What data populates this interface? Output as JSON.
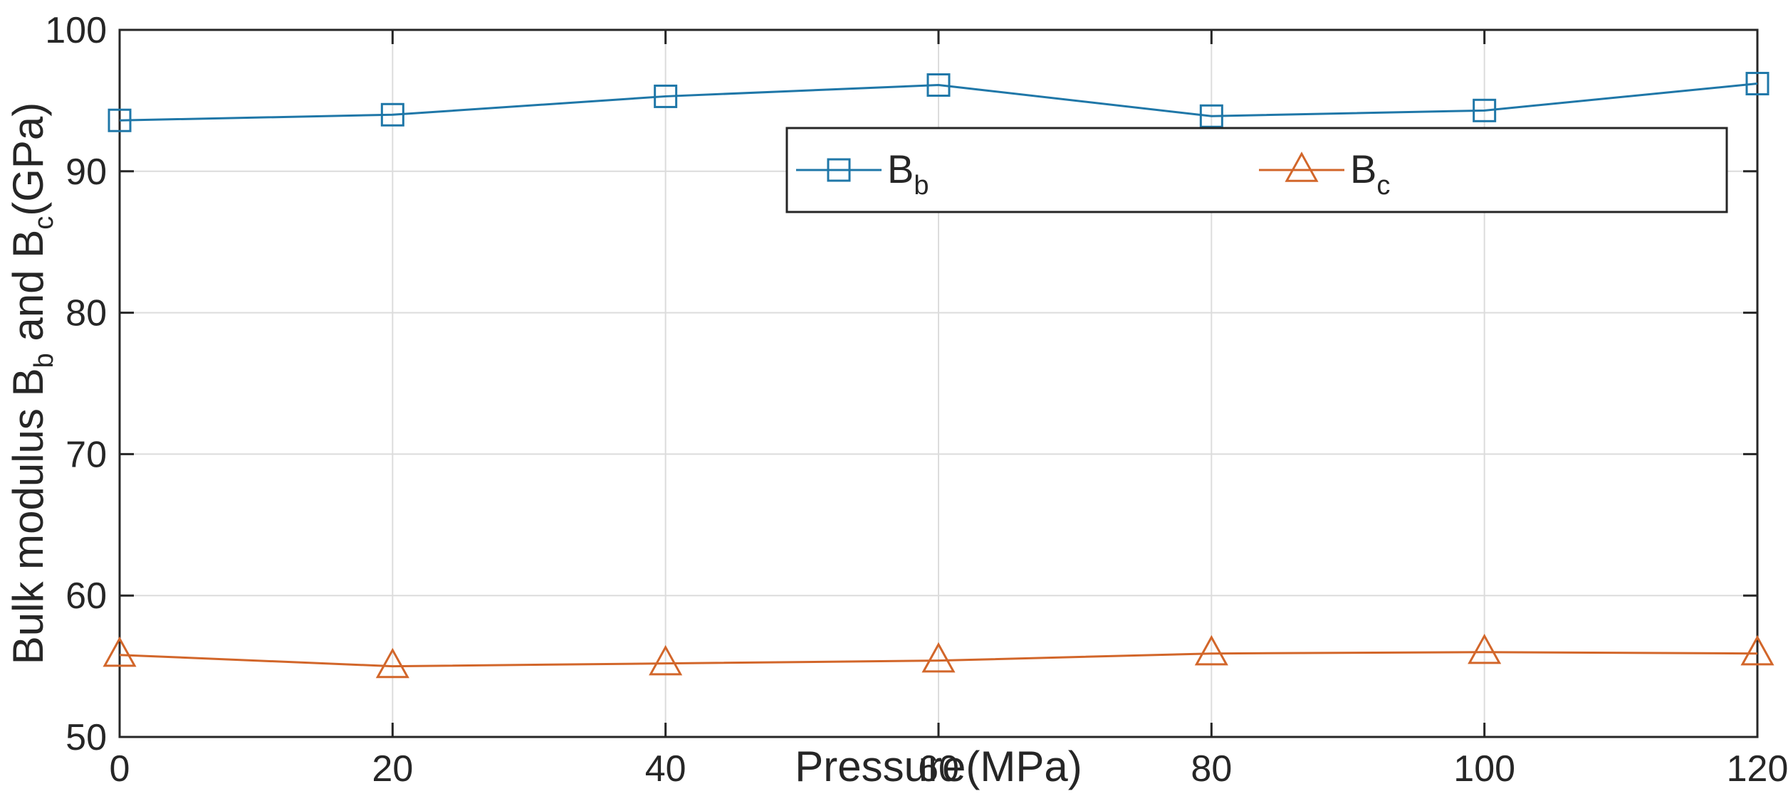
{
  "chart_data": {
    "type": "line",
    "x": [
      0,
      20,
      40,
      60,
      80,
      100,
      120
    ],
    "series": [
      {
        "name": "B_b",
        "label": "B",
        "subscript": "b",
        "marker": "square",
        "color": "#1f77a8",
        "values": [
          93.6,
          94.0,
          95.3,
          96.1,
          93.9,
          94.3,
          96.2
        ]
      },
      {
        "name": "B_c",
        "label": "B",
        "subscript": "c",
        "marker": "triangle",
        "color": "#d2662a",
        "values": [
          55.8,
          55.0,
          55.2,
          55.4,
          55.9,
          56.0,
          55.9
        ]
      }
    ],
    "xlabel": "Pressure(MPa)",
    "ylabel": {
      "part1": "Bulk modulus B",
      "sub1": "b",
      "part2": " and B",
      "sub2": "c",
      "part3": "(GPa)"
    },
    "xlim": [
      0,
      120
    ],
    "ylim": [
      50,
      100
    ],
    "xticks": [
      0,
      20,
      40,
      60,
      80,
      100,
      120
    ],
    "yticks": [
      50,
      60,
      70,
      80,
      90,
      100
    ],
    "grid": true,
    "legend_position": "upper-right"
  }
}
